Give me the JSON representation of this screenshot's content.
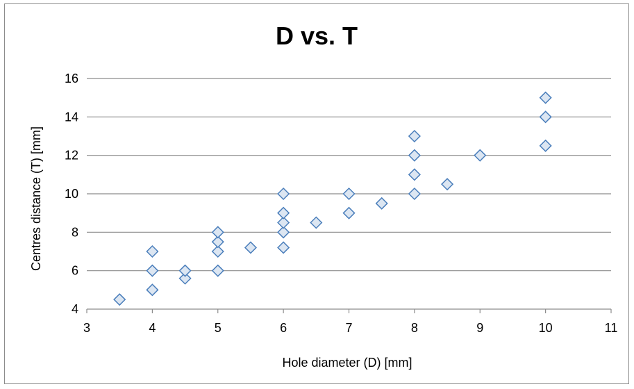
{
  "chart_data": {
    "type": "scatter",
    "title": "D vs. T",
    "xlabel": "Hole diameter (D) [mm]",
    "ylabel": "Centres distance (T) [mm]",
    "xlim": [
      3,
      11
    ],
    "ylim": [
      4,
      16
    ],
    "xticks": [
      3,
      4,
      5,
      6,
      7,
      8,
      9,
      10,
      11
    ],
    "yticks": [
      4,
      6,
      8,
      10,
      12,
      14,
      16
    ],
    "grid": "horizontal",
    "legend": "none",
    "marker": "diamond",
    "marker_fill": "#dce6f2",
    "marker_stroke": "#4a7ebb",
    "series": [
      {
        "points": [
          [
            3.5,
            4.5
          ],
          [
            4,
            5
          ],
          [
            4,
            6
          ],
          [
            4,
            7
          ],
          [
            4.5,
            5.6
          ],
          [
            4.5,
            6
          ],
          [
            5,
            6
          ],
          [
            5,
            7
          ],
          [
            5,
            7.5
          ],
          [
            5,
            8
          ],
          [
            5.5,
            7.2
          ],
          [
            6,
            7.2
          ],
          [
            6,
            8
          ],
          [
            6,
            8.5
          ],
          [
            6,
            9
          ],
          [
            6,
            10
          ],
          [
            6.5,
            8.5
          ],
          [
            7,
            9
          ],
          [
            7,
            10
          ],
          [
            7.5,
            9.5
          ],
          [
            8,
            10
          ],
          [
            8,
            11
          ],
          [
            8,
            12
          ],
          [
            8,
            13
          ],
          [
            8.5,
            10.5
          ],
          [
            9,
            12
          ],
          [
            10,
            12.5
          ],
          [
            10,
            14
          ],
          [
            10,
            15
          ]
        ]
      }
    ]
  }
}
